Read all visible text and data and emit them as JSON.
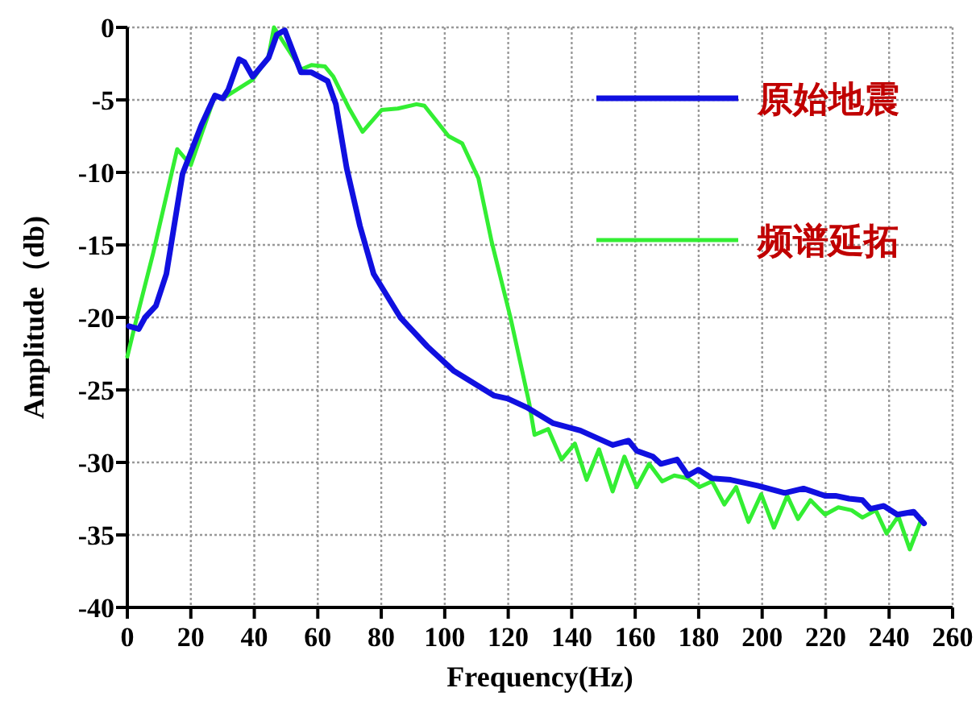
{
  "chart_data": {
    "type": "line",
    "xlabel": "Frequency(Hz)",
    "ylabel": "Amplitude（db)",
    "xlim": [
      0,
      260
    ],
    "ylim": [
      -40,
      0
    ],
    "xticks": [
      0,
      20,
      40,
      60,
      80,
      100,
      120,
      140,
      160,
      180,
      200,
      220,
      240,
      260
    ],
    "yticks": [
      -40,
      -35,
      -30,
      -25,
      -20,
      -15,
      -10,
      -5,
      0
    ],
    "grid": true,
    "legend": "top right",
    "series": [
      {
        "name": "原始地震",
        "color": "#1010e0",
        "x": [
          0.5,
          3.6,
          5.6,
          9.0,
          12.3,
          17.4,
          23.4,
          27.6,
          30.1,
          31.8,
          35.2,
          36.9,
          39.5,
          44.5,
          47.1,
          49.6,
          54.7,
          58.0,
          63.1,
          65.7,
          69.1,
          73.3,
          77.6,
          86.0,
          94.5,
          102.9,
          115.6,
          119.9,
          125.8,
          134.2,
          142.7,
          152.9,
          157.9,
          160.5,
          165.6,
          168.1,
          173.2,
          176.6,
          179.9,
          184.2,
          190.1,
          198.6,
          207.1,
          213.0,
          219.8,
          223.1,
          227.4,
          231.6,
          234.1,
          238.3,
          242.6,
          247.7,
          251.0
        ],
        "values": [
          -20.6,
          -20.8,
          -20.0,
          -19.2,
          -17.0,
          -10.1,
          -6.7,
          -4.7,
          -4.9,
          -4.3,
          -2.2,
          -2.4,
          -3.4,
          -2.1,
          -0.5,
          -0.2,
          -3.1,
          -3.1,
          -3.7,
          -5.3,
          -9.7,
          -13.7,
          -17.0,
          -20.0,
          -22.0,
          -23.7,
          -25.4,
          -25.6,
          -26.2,
          -27.3,
          -27.8,
          -28.8,
          -28.5,
          -29.2,
          -29.6,
          -30.1,
          -29.8,
          -30.9,
          -30.5,
          -31.1,
          -31.2,
          -31.6,
          -32.1,
          -31.8,
          -32.3,
          -32.3,
          -32.5,
          -32.6,
          -33.2,
          -33.0,
          -33.6,
          -33.4,
          -34.2
        ]
      },
      {
        "name": "频谱延拓",
        "color": "#33ee33",
        "x": [
          0,
          3,
          8.1,
          15.7,
          20,
          27.6,
          30.1,
          39.5,
          44.5,
          46.2,
          54.7,
          58,
          62.3,
          64.9,
          69.9,
          74.1,
          80.1,
          85.2,
          91.1,
          93.6,
          101.2,
          105.5,
          110.6,
          114.8,
          120.7,
          126.6,
          128.3,
          132.6,
          136.8,
          141.0,
          144.7,
          148.6,
          152.9,
          156.6,
          160.5,
          164.4,
          168.5,
          172.3,
          176.6,
          180.3,
          184.2,
          188.1,
          191.8,
          195.7,
          199.7,
          203.7,
          207.9,
          211.3,
          215.2,
          219.8,
          224.0,
          228.2,
          231.6,
          235.8,
          239.2,
          242.9,
          246.5,
          250.2
        ],
        "values": [
          -22.7,
          -20,
          -15.6,
          -8.4,
          -9.5,
          -4.7,
          -4.9,
          -3.6,
          -2.0,
          0,
          -2.9,
          -2.6,
          -2.7,
          -3.4,
          -5.6,
          -7.2,
          -5.7,
          -5.6,
          -5.3,
          -5.4,
          -7.5,
          -8.0,
          -10.4,
          -14.8,
          -20,
          -25.9,
          -28.1,
          -27.7,
          -29.8,
          -28.7,
          -31.2,
          -29.1,
          -32.0,
          -29.6,
          -31.7,
          -30.1,
          -31.3,
          -30.9,
          -31.1,
          -31.7,
          -31.3,
          -32.9,
          -31.7,
          -34.1,
          -32.2,
          -34.5,
          -32.3,
          -33.9,
          -32.6,
          -33.6,
          -33.1,
          -33.3,
          -33.8,
          -33.3,
          -34.9,
          -33.7,
          -36.0,
          -33.9
        ]
      }
    ]
  }
}
